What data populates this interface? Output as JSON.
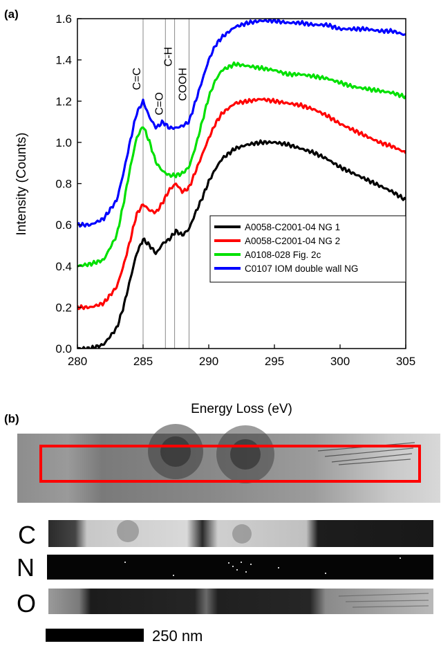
{
  "panel_a_label": "(a)",
  "panel_b_label": "(b)",
  "chart_data": {
    "type": "line",
    "title": "",
    "xlabel": "Energy Loss (eV)",
    "ylabel": "Intensity (Counts)",
    "xlim": [
      280,
      305
    ],
    "ylim": [
      0,
      1.6
    ],
    "xticks": [
      280,
      285,
      290,
      295,
      300,
      305
    ],
    "yticks": [
      0.0,
      0.2,
      0.4,
      0.6,
      0.8,
      1.0,
      1.2,
      1.4,
      1.6
    ],
    "grid": false,
    "legend_position": "lower-right",
    "vlines": [
      {
        "x": 285.0,
        "label": "C=C"
      },
      {
        "x": 286.7,
        "label": "C=O"
      },
      {
        "x": 287.4,
        "label": "C-H"
      },
      {
        "x": 288.5,
        "label": "COOH"
      }
    ],
    "series": [
      {
        "name": "A0058-C2001-04 NG 1",
        "color": "#000000",
        "x": [
          280,
          281,
          282,
          283,
          283.5,
          284,
          284.5,
          285,
          285.5,
          286,
          286.5,
          287,
          287.5,
          288,
          288.5,
          289,
          289.5,
          290,
          290.5,
          291,
          292,
          293,
          294,
          295,
          296,
          297,
          298,
          299,
          300,
          301,
          302,
          303,
          304,
          305
        ],
        "y": [
          0.0,
          0.0,
          0.02,
          0.1,
          0.2,
          0.33,
          0.46,
          0.53,
          0.5,
          0.46,
          0.51,
          0.53,
          0.57,
          0.55,
          0.58,
          0.66,
          0.73,
          0.81,
          0.87,
          0.92,
          0.97,
          0.99,
          1.0,
          1.0,
          0.99,
          0.97,
          0.95,
          0.92,
          0.88,
          0.85,
          0.82,
          0.79,
          0.76,
          0.72
        ]
      },
      {
        "name": "A0058-C2001-04 NG 2",
        "color": "#ff0000",
        "x": [
          280,
          281,
          282,
          283,
          283.5,
          284,
          284.5,
          285,
          285.5,
          286,
          286.5,
          287,
          287.5,
          288,
          288.5,
          289,
          289.5,
          290,
          290.5,
          291,
          292,
          293,
          294,
          295,
          296,
          297,
          298,
          299,
          300,
          301,
          302,
          303,
          304,
          305
        ],
        "y": [
          0.2,
          0.2,
          0.22,
          0.3,
          0.4,
          0.52,
          0.65,
          0.7,
          0.67,
          0.66,
          0.71,
          0.77,
          0.8,
          0.76,
          0.78,
          0.86,
          0.94,
          1.02,
          1.09,
          1.14,
          1.19,
          1.2,
          1.21,
          1.2,
          1.19,
          1.18,
          1.16,
          1.13,
          1.09,
          1.06,
          1.03,
          1.0,
          0.98,
          0.95
        ]
      },
      {
        "name": "A0108-028 Fig. 2c",
        "color": "#00e000",
        "x": [
          280,
          281,
          282,
          283,
          283.5,
          284,
          284.5,
          285,
          285.5,
          286,
          286.5,
          287,
          287.5,
          288,
          288.5,
          289,
          289.5,
          290,
          290.5,
          291,
          292,
          293,
          294,
          295,
          296,
          297,
          298,
          299,
          300,
          301,
          302,
          303,
          304,
          305
        ],
        "y": [
          0.4,
          0.41,
          0.43,
          0.55,
          0.7,
          0.87,
          1.02,
          1.08,
          1.0,
          0.9,
          0.86,
          0.84,
          0.84,
          0.85,
          0.88,
          0.98,
          1.1,
          1.22,
          1.3,
          1.35,
          1.38,
          1.37,
          1.36,
          1.35,
          1.33,
          1.33,
          1.32,
          1.31,
          1.29,
          1.27,
          1.26,
          1.25,
          1.24,
          1.22
        ]
      },
      {
        "name": "C0107 IOM double wall NG",
        "color": "#0000ff",
        "x": [
          280,
          281,
          282,
          283,
          283.5,
          284,
          284.5,
          285,
          285.5,
          286,
          286.5,
          287,
          287.5,
          288,
          288.5,
          289,
          289.5,
          290,
          290.5,
          291,
          292,
          293,
          294,
          295,
          296,
          297,
          298,
          299,
          300,
          301,
          302,
          303,
          304,
          305
        ],
        "y": [
          0.6,
          0.6,
          0.63,
          0.72,
          0.85,
          1.0,
          1.14,
          1.2,
          1.12,
          1.07,
          1.1,
          1.07,
          1.07,
          1.08,
          1.1,
          1.2,
          1.3,
          1.4,
          1.47,
          1.51,
          1.56,
          1.58,
          1.59,
          1.59,
          1.58,
          1.58,
          1.57,
          1.57,
          1.55,
          1.55,
          1.55,
          1.54,
          1.54,
          1.52
        ]
      }
    ]
  },
  "map_labels": [
    "C",
    "N",
    "O"
  ],
  "scale_bar_label": "250 nm",
  "colors": {
    "roi_box": "#ff0000"
  }
}
